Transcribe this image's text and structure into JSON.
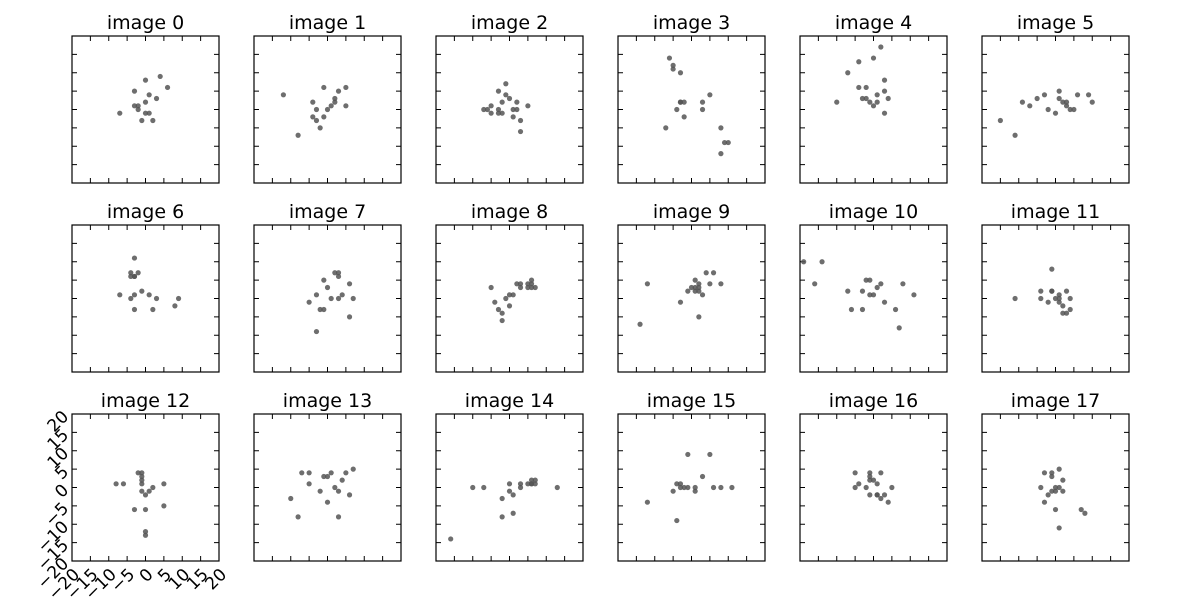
{
  "chart_data": {
    "type": "scatter",
    "grid": false,
    "xlim": [
      -20,
      20
    ],
    "ylim": [
      -20,
      20
    ],
    "xticks": [
      "−20",
      "−15",
      "−10",
      "−5",
      "0",
      "5",
      "10",
      "15",
      "20"
    ],
    "yticks": [
      "−20",
      "−15",
      "−10",
      "−5",
      "0",
      "5",
      "10",
      "15",
      "20"
    ],
    "tick_label_panel": 12,
    "point_color": "#555555",
    "panels": [
      {
        "title": "image 0",
        "points": [
          [
            -7,
            -1
          ],
          [
            -3,
            5
          ],
          [
            -3,
            1
          ],
          [
            -2,
            0
          ],
          [
            -1,
            -3
          ],
          [
            0,
            2
          ],
          [
            0,
            8
          ],
          [
            1,
            4
          ],
          [
            1,
            -1
          ],
          [
            2,
            -3
          ],
          [
            3,
            3
          ],
          [
            4,
            9
          ],
          [
            6,
            6
          ],
          [
            -2,
            1
          ],
          [
            0,
            -1
          ]
        ]
      },
      {
        "title": "image 1",
        "points": [
          [
            -12,
            4
          ],
          [
            -8,
            -7
          ],
          [
            -4,
            2
          ],
          [
            -4,
            -2
          ],
          [
            -3,
            -3
          ],
          [
            -3,
            0
          ],
          [
            -2,
            -5
          ],
          [
            -1,
            6
          ],
          [
            -1,
            -2
          ],
          [
            0,
            0
          ],
          [
            1,
            1
          ],
          [
            2,
            3
          ],
          [
            3,
            5
          ],
          [
            5,
            6
          ],
          [
            5,
            1
          ],
          [
            2,
            2
          ]
        ]
      },
      {
        "title": "image 2",
        "points": [
          [
            -7,
            0
          ],
          [
            -6,
            0
          ],
          [
            -5,
            -1
          ],
          [
            -5,
            1
          ],
          [
            -3,
            0
          ],
          [
            -2,
            -1
          ],
          [
            -2,
            2
          ],
          [
            -1,
            4
          ],
          [
            0,
            3
          ],
          [
            1,
            0
          ],
          [
            1,
            -2
          ],
          [
            2,
            0
          ],
          [
            2,
            2
          ],
          [
            3,
            -3
          ],
          [
            3,
            -6
          ],
          [
            5,
            1
          ],
          [
            -3,
            5
          ],
          [
            -1,
            7
          ],
          [
            -3,
            -1
          ]
        ]
      },
      {
        "title": "image 3",
        "points": [
          [
            -6,
            14
          ],
          [
            -5,
            12
          ],
          [
            -5,
            11
          ],
          [
            -3,
            10
          ],
          [
            -7,
            -5
          ],
          [
            -4,
            0
          ],
          [
            -3,
            2
          ],
          [
            -2,
            2
          ],
          [
            -2,
            -2
          ],
          [
            3,
            2
          ],
          [
            3,
            0
          ],
          [
            5,
            4
          ],
          [
            8,
            -5
          ],
          [
            9,
            -9
          ],
          [
            10,
            -9
          ],
          [
            8,
            -12
          ],
          [
            -3,
            2
          ]
        ]
      },
      {
        "title": "image 4",
        "points": [
          [
            -10,
            2
          ],
          [
            -7,
            10
          ],
          [
            -4,
            13
          ],
          [
            -4,
            6
          ],
          [
            -3,
            3
          ],
          [
            -2,
            6
          ],
          [
            -1,
            2
          ],
          [
            0,
            1
          ],
          [
            1,
            4
          ],
          [
            2,
            17
          ],
          [
            3,
            5
          ],
          [
            3,
            8
          ],
          [
            4,
            3
          ],
          [
            3,
            -1
          ],
          [
            1,
            2
          ],
          [
            -2,
            3
          ],
          [
            0,
            14
          ]
        ]
      },
      {
        "title": "image 5",
        "points": [
          [
            -15,
            -3
          ],
          [
            -11,
            -7
          ],
          [
            -9,
            2
          ],
          [
            -7,
            1
          ],
          [
            -3,
            4
          ],
          [
            -2,
            0
          ],
          [
            0,
            -1
          ],
          [
            1,
            3
          ],
          [
            1,
            5
          ],
          [
            3,
            2
          ],
          [
            3,
            1
          ],
          [
            4,
            0
          ],
          [
            5,
            0
          ],
          [
            6,
            4
          ],
          [
            9,
            4
          ],
          [
            10,
            2
          ],
          [
            -5,
            3
          ],
          [
            2,
            2
          ]
        ]
      },
      {
        "title": "image 6",
        "points": [
          [
            -4,
            7
          ],
          [
            -4,
            6
          ],
          [
            -3,
            6
          ],
          [
            -2,
            7
          ],
          [
            -3,
            11
          ],
          [
            -7,
            1
          ],
          [
            -4,
            0
          ],
          [
            -3,
            -3
          ],
          [
            -3,
            1
          ],
          [
            -1,
            2
          ],
          [
            1,
            1
          ],
          [
            2,
            -3
          ],
          [
            3,
            0
          ],
          [
            8,
            -2
          ],
          [
            9,
            0
          ],
          [
            -3,
            6
          ]
        ]
      },
      {
        "title": "image 7",
        "points": [
          [
            -5,
            -1
          ],
          [
            -3,
            1
          ],
          [
            -2,
            -3
          ],
          [
            -3,
            -9
          ],
          [
            -1,
            -3
          ],
          [
            -1,
            5
          ],
          [
            0,
            3
          ],
          [
            1,
            0
          ],
          [
            2,
            7
          ],
          [
            3,
            0
          ],
          [
            3,
            6
          ],
          [
            4,
            1
          ],
          [
            6,
            4
          ],
          [
            6,
            -5
          ],
          [
            7,
            0
          ],
          [
            3,
            7
          ]
        ]
      },
      {
        "title": "image 8",
        "points": [
          [
            -5,
            3
          ],
          [
            -4,
            -1
          ],
          [
            -3,
            -3
          ],
          [
            -2,
            -4
          ],
          [
            -2,
            -6
          ],
          [
            -1,
            0
          ],
          [
            0,
            1
          ],
          [
            1,
            1
          ],
          [
            2,
            4
          ],
          [
            3,
            4
          ],
          [
            5,
            3
          ],
          [
            5,
            4
          ],
          [
            6,
            3
          ],
          [
            6,
            4
          ],
          [
            7,
            3
          ],
          [
            6,
            5
          ],
          [
            3,
            3
          ],
          [
            0,
            -2
          ]
        ]
      },
      {
        "title": "image 9",
        "points": [
          [
            -14,
            -7
          ],
          [
            -12,
            4
          ],
          [
            -3,
            -1
          ],
          [
            -1,
            2
          ],
          [
            0,
            3
          ],
          [
            1,
            2
          ],
          [
            1,
            5
          ],
          [
            2,
            -5
          ],
          [
            2,
            3
          ],
          [
            3,
            1
          ],
          [
            4,
            7
          ],
          [
            5,
            4
          ],
          [
            6,
            7
          ],
          [
            8,
            4
          ],
          [
            2,
            4
          ],
          [
            1,
            3
          ],
          [
            2,
            2
          ]
        ]
      },
      {
        "title": "image 10",
        "points": [
          [
            -19,
            10
          ],
          [
            -14,
            10
          ],
          [
            -16,
            4
          ],
          [
            -7,
            2
          ],
          [
            -6,
            -3
          ],
          [
            -3,
            -3
          ],
          [
            -3,
            2
          ],
          [
            -2,
            5
          ],
          [
            -1,
            1
          ],
          [
            0,
            1
          ],
          [
            1,
            3
          ],
          [
            2,
            4
          ],
          [
            3,
            -1
          ],
          [
            6,
            -3
          ],
          [
            7,
            -8
          ],
          [
            8,
            4
          ],
          [
            11,
            1
          ],
          [
            -1,
            5
          ]
        ]
      },
      {
        "title": "image 11",
        "points": [
          [
            -11,
            0
          ],
          [
            -4,
            0
          ],
          [
            -4,
            2
          ],
          [
            -2,
            -1
          ],
          [
            -1,
            2
          ],
          [
            -1,
            8
          ],
          [
            0,
            0
          ],
          [
            1,
            -1
          ],
          [
            1,
            1
          ],
          [
            2,
            -2
          ],
          [
            2,
            -4
          ],
          [
            3,
            2
          ],
          [
            3,
            -4
          ],
          [
            4,
            0
          ],
          [
            4,
            -3
          ],
          [
            -1,
            2
          ],
          [
            1,
            0
          ]
        ]
      },
      {
        "title": "image 12",
        "points": [
          [
            -8,
            1
          ],
          [
            -6,
            1
          ],
          [
            -3,
            -6
          ],
          [
            -2,
            4
          ],
          [
            -1,
            1
          ],
          [
            -1,
            2
          ],
          [
            -1,
            3
          ],
          [
            -1,
            -1
          ],
          [
            0,
            -2
          ],
          [
            0,
            -6
          ],
          [
            0,
            -12
          ],
          [
            0,
            -13
          ],
          [
            1,
            -1
          ],
          [
            2,
            0
          ],
          [
            5,
            1
          ],
          [
            5,
            -5
          ],
          [
            -1,
            4
          ]
        ]
      },
      {
        "title": "image 13",
        "points": [
          [
            -10,
            -3
          ],
          [
            -8,
            -8
          ],
          [
            -7,
            4
          ],
          [
            -5,
            4
          ],
          [
            -5,
            1
          ],
          [
            -2,
            -1
          ],
          [
            -1,
            3
          ],
          [
            0,
            -4
          ],
          [
            1,
            4
          ],
          [
            2,
            0
          ],
          [
            3,
            -8
          ],
          [
            3,
            -1
          ],
          [
            4,
            2
          ],
          [
            6,
            -2
          ],
          [
            7,
            5
          ],
          [
            5,
            4
          ],
          [
            0,
            3
          ]
        ]
      },
      {
        "title": "image 14",
        "points": [
          [
            -16,
            -14
          ],
          [
            -10,
            0
          ],
          [
            -7,
            0
          ],
          [
            -2,
            -3
          ],
          [
            -2,
            -8
          ],
          [
            0,
            -1
          ],
          [
            0,
            1
          ],
          [
            1,
            -2
          ],
          [
            1,
            -7
          ],
          [
            3,
            0
          ],
          [
            3,
            1
          ],
          [
            5,
            1
          ],
          [
            6,
            2
          ],
          [
            6,
            1
          ],
          [
            7,
            1
          ],
          [
            7,
            2
          ],
          [
            13,
            0
          ],
          [
            6,
            1
          ]
        ]
      },
      {
        "title": "image 15",
        "points": [
          [
            -12,
            -4
          ],
          [
            -5,
            -1
          ],
          [
            -4,
            1
          ],
          [
            -4,
            -9
          ],
          [
            -3,
            0
          ],
          [
            -2,
            0
          ],
          [
            -1,
            0
          ],
          [
            -1,
            9
          ],
          [
            1,
            -1
          ],
          [
            1,
            0
          ],
          [
            3,
            3
          ],
          [
            5,
            9
          ],
          [
            6,
            0
          ],
          [
            8,
            0
          ],
          [
            11,
            0
          ],
          [
            -3,
            1
          ]
        ]
      },
      {
        "title": "image 16",
        "points": [
          [
            -5,
            4
          ],
          [
            -5,
            0
          ],
          [
            -4,
            1
          ],
          [
            -2,
            0
          ],
          [
            -1,
            -2
          ],
          [
            -1,
            2
          ],
          [
            -1,
            4
          ],
          [
            0,
            2
          ],
          [
            1,
            -2
          ],
          [
            1,
            1
          ],
          [
            2,
            -3
          ],
          [
            2,
            4
          ],
          [
            3,
            -2
          ],
          [
            4,
            -4
          ],
          [
            5,
            0
          ],
          [
            -1,
            3
          ],
          [
            1,
            -2
          ]
        ]
      },
      {
        "title": "image 17",
        "points": [
          [
            -4,
            0
          ],
          [
            -3,
            4
          ],
          [
            -3,
            -4
          ],
          [
            -2,
            -2
          ],
          [
            -1,
            4
          ],
          [
            -1,
            3
          ],
          [
            0,
            0
          ],
          [
            0,
            -1
          ],
          [
            0,
            -6
          ],
          [
            1,
            -11
          ],
          [
            1,
            5
          ],
          [
            1,
            0
          ],
          [
            2,
            2
          ],
          [
            2,
            -1
          ],
          [
            7,
            -6
          ],
          [
            8,
            -7
          ],
          [
            -1,
            -1
          ]
        ]
      }
    ]
  }
}
